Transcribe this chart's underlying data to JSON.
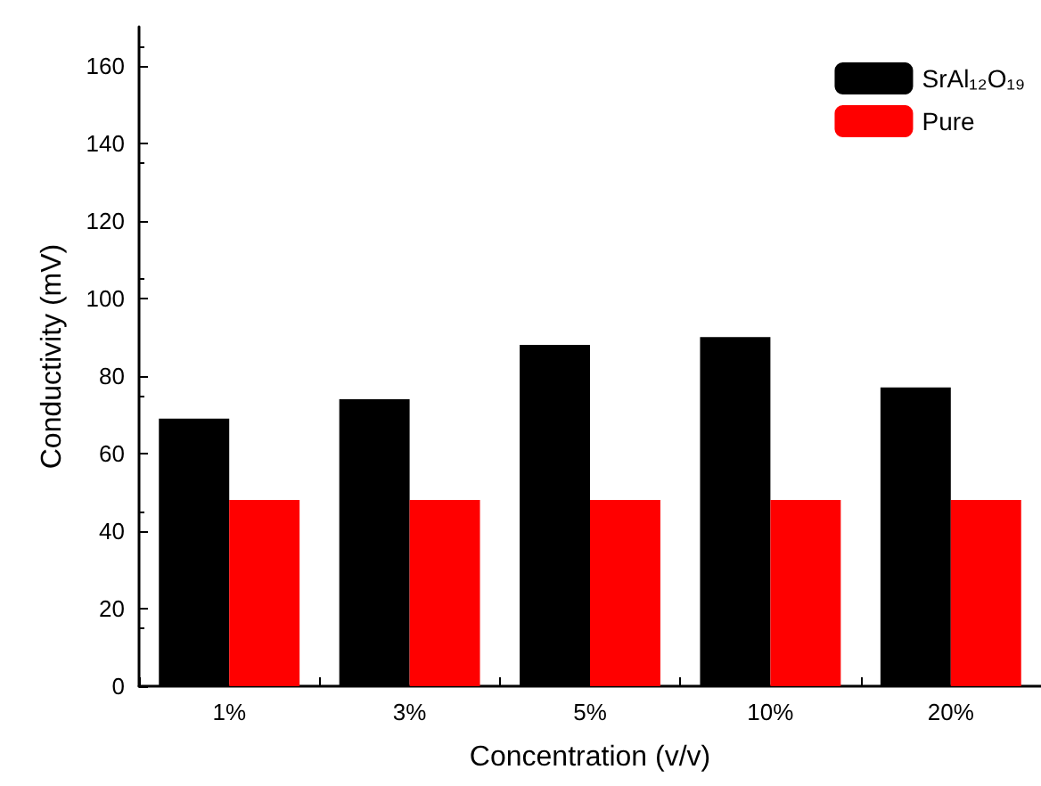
{
  "chart_data": {
    "type": "bar",
    "xlabel": "Concentration (v/v)",
    "ylabel": "Conductivity (mV)",
    "categories": [
      "1%",
      "3%",
      "5%",
      "10%",
      "20%"
    ],
    "series": [
      {
        "name": "SrAl₁₂O₁₉",
        "color": "#000000",
        "values": [
          69,
          74,
          88,
          90,
          77
        ]
      },
      {
        "name": "Pure",
        "color": "#ff0000",
        "values": [
          48,
          48,
          48,
          48,
          48
        ]
      }
    ],
    "ylim": [
      0,
      170
    ],
    "yticks": [
      0,
      20,
      40,
      60,
      80,
      100,
      120,
      140,
      160
    ],
    "grid": false,
    "legend": "top right"
  }
}
